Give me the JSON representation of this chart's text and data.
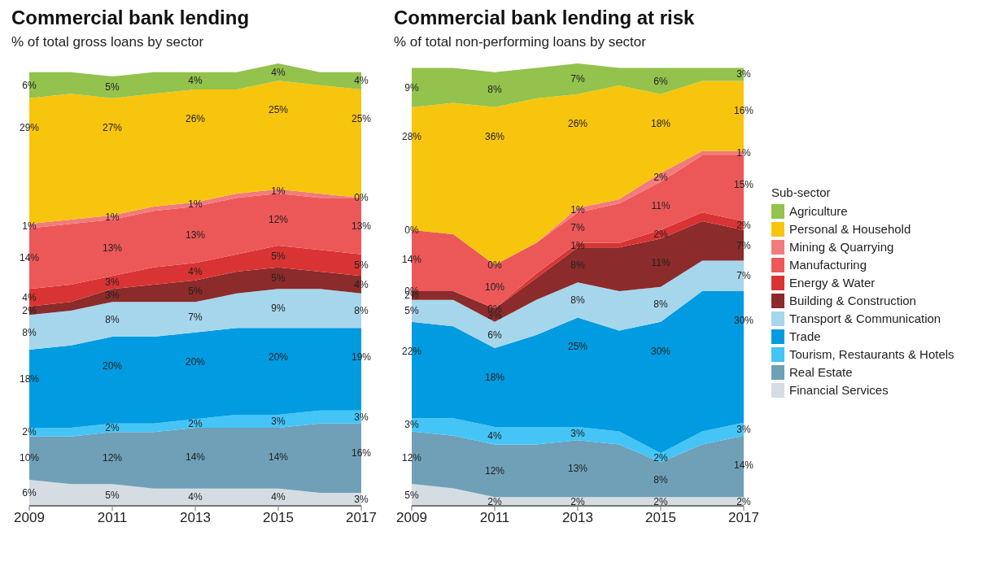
{
  "chart_data": [
    {
      "type": "area",
      "title": "Commercial bank lending",
      "subtitle": "% of total gross loans by sector",
      "stacked": true,
      "legend": false,
      "x": [
        2009,
        2010,
        2011,
        2012,
        2013,
        2014,
        2015,
        2016,
        2017
      ],
      "xlim": [
        2009,
        2017
      ],
      "xticks": [
        2009,
        2011,
        2013,
        2015,
        2017
      ],
      "series": [
        {
          "color": "#d5dde2",
          "values": [
            6,
            5,
            5,
            4,
            4,
            4,
            4,
            3,
            3
          ],
          "value_labels": [
            "6%",
            null,
            "5%",
            null,
            "4%",
            null,
            "4%",
            null,
            "3%"
          ]
        },
        {
          "color": "#6fa0b8",
          "values": [
            10,
            11,
            12,
            13,
            14,
            14,
            14,
            16,
            16
          ],
          "value_labels": [
            "10%",
            null,
            "12%",
            null,
            "14%",
            null,
            "14%",
            null,
            "16%"
          ]
        },
        {
          "color": "#45c4f6",
          "values": [
            2,
            2,
            2,
            2,
            2,
            3,
            3,
            3,
            3
          ],
          "value_labels": [
            "2%",
            null,
            "2%",
            null,
            "2%",
            null,
            "3%",
            null,
            "3%"
          ]
        },
        {
          "color": "#009be0",
          "values": [
            18,
            19,
            20,
            20,
            20,
            20,
            20,
            19,
            19
          ],
          "value_labels": [
            "18%",
            null,
            "20%",
            null,
            "20%",
            null,
            "20%",
            null,
            "19%"
          ]
        },
        {
          "color": "#a6d6ec",
          "values": [
            8,
            8,
            8,
            8,
            7,
            8,
            9,
            9,
            8
          ],
          "value_labels": [
            "8%",
            null,
            "8%",
            null,
            "7%",
            null,
            "9%",
            null,
            "8%"
          ]
        },
        {
          "color": "#8b2b2b",
          "values": [
            2,
            2,
            3,
            4,
            5,
            5,
            5,
            4,
            4
          ],
          "value_labels": [
            "2%",
            null,
            "3%",
            null,
            "5%",
            null,
            "5%",
            null,
            "4%"
          ]
        },
        {
          "color": "#d93333",
          "values": [
            4,
            4,
            3,
            4,
            4,
            4,
            5,
            5,
            5
          ],
          "value_labels": [
            "4%",
            null,
            "3%",
            null,
            "4%",
            null,
            "5%",
            null,
            "5%"
          ]
        },
        {
          "color": "#ec5858",
          "values": [
            14,
            14,
            13,
            13,
            13,
            13,
            12,
            12,
            13
          ],
          "value_labels": [
            "14%",
            null,
            "13%",
            null,
            "13%",
            null,
            "12%",
            null,
            "13%"
          ]
        },
        {
          "color": "#f27b7b",
          "values": [
            1,
            1,
            1,
            1,
            1,
            1,
            1,
            1,
            0
          ],
          "value_labels": [
            "1%",
            null,
            "1%",
            null,
            "1%",
            null,
            "1%",
            null,
            "0%"
          ]
        },
        {
          "color": "#f8c50e",
          "values": [
            29,
            29,
            27,
            26,
            26,
            24,
            25,
            25,
            25
          ],
          "value_labels": [
            "29%",
            null,
            "27%",
            null,
            "26%",
            null,
            "25%",
            null,
            "25%"
          ]
        },
        {
          "color": "#93c24d",
          "values": [
            6,
            5,
            5,
            5,
            4,
            4,
            4,
            3,
            4
          ],
          "value_labels": [
            "6%",
            null,
            "5%",
            null,
            "4%",
            null,
            "4%",
            null,
            "4%"
          ]
        }
      ]
    },
    {
      "type": "area",
      "title": "Commercial bank lending at risk",
      "subtitle": "% of total non-performing loans by sector",
      "stacked": true,
      "legend": "right",
      "legend_title": "Sub-sector",
      "x": [
        2009,
        2010,
        2011,
        2012,
        2013,
        2014,
        2015,
        2016,
        2017
      ],
      "xlim": [
        2009,
        2017
      ],
      "xticks": [
        2009,
        2011,
        2013,
        2015,
        2017
      ],
      "series": [
        {
          "name": "Financial Services",
          "color": "#d5dde2",
          "values": [
            5,
            4,
            2,
            2,
            2,
            2,
            2,
            2,
            2
          ],
          "value_labels": [
            "5%",
            null,
            "2%",
            null,
            "2%",
            null,
            "2%",
            null,
            "2%"
          ]
        },
        {
          "name": "Real Estate",
          "color": "#6fa0b8",
          "values": [
            12,
            12,
            12,
            12,
            13,
            12,
            8,
            12,
            14
          ],
          "value_labels": [
            "12%",
            null,
            "12%",
            null,
            "13%",
            null,
            "8%",
            null,
            "14%"
          ]
        },
        {
          "name": "Tourism, Restaurants & Hotels",
          "color": "#45c4f6",
          "values": [
            3,
            4,
            4,
            4,
            3,
            3,
            2,
            3,
            3
          ],
          "value_labels": [
            "3%",
            null,
            "4%",
            null,
            "3%",
            null,
            "2%",
            null,
            "3%"
          ]
        },
        {
          "name": "Trade",
          "color": "#009be0",
          "values": [
            22,
            21,
            18,
            21,
            25,
            23,
            30,
            32,
            30
          ],
          "value_labels": [
            "22%",
            null,
            "18%",
            null,
            "25%",
            null,
            "30%",
            null,
            "30%"
          ]
        },
        {
          "name": "Transport & Communication",
          "color": "#a6d6ec",
          "values": [
            5,
            6,
            6,
            8,
            8,
            9,
            8,
            7,
            7
          ],
          "value_labels": [
            "5%",
            null,
            "6%",
            null,
            "8%",
            null,
            "8%",
            null,
            "7%"
          ]
        },
        {
          "name": "Building & Construction",
          "color": "#8b2b2b",
          "values": [
            2,
            2,
            3,
            5,
            8,
            10,
            11,
            9,
            7
          ],
          "value_labels": [
            "2%",
            null,
            "3%",
            null,
            "8%",
            null,
            "11%",
            null,
            "7%"
          ]
        },
        {
          "name": "Energy & Water",
          "color": "#d93333",
          "values": [
            0,
            0,
            0,
            1,
            1,
            1,
            2,
            2,
            2
          ],
          "value_labels": [
            "0%",
            null,
            "0%",
            null,
            "1%",
            null,
            "2%",
            null,
            "2%"
          ]
        },
        {
          "name": "Manufacturing",
          "color": "#ec5858",
          "values": [
            14,
            13,
            10,
            7,
            7,
            9,
            11,
            13,
            15
          ],
          "value_labels": [
            "14%",
            null,
            "10%",
            null,
            "7%",
            null,
            "11%",
            null,
            "15%"
          ]
        },
        {
          "name": "Mining & Quarrying",
          "color": "#f27b7b",
          "values": [
            0,
            0,
            0,
            0,
            1,
            1,
            2,
            1,
            1
          ],
          "value_labels": [
            "0%",
            null,
            "0%",
            null,
            "1%",
            null,
            "2%",
            null,
            "1%"
          ]
        },
        {
          "name": "Personal & Household",
          "color": "#f8c50e",
          "values": [
            28,
            30,
            36,
            33,
            26,
            26,
            18,
            16,
            16
          ],
          "value_labels": [
            "28%",
            null,
            "36%",
            null,
            "26%",
            null,
            "18%",
            null,
            "16%"
          ]
        },
        {
          "name": "Agriculture",
          "color": "#93c24d",
          "values": [
            9,
            8,
            8,
            7,
            7,
            4,
            6,
            3,
            3
          ],
          "value_labels": [
            "9%",
            null,
            "8%",
            null,
            "7%",
            null,
            "6%",
            null,
            "3%"
          ]
        }
      ]
    }
  ]
}
